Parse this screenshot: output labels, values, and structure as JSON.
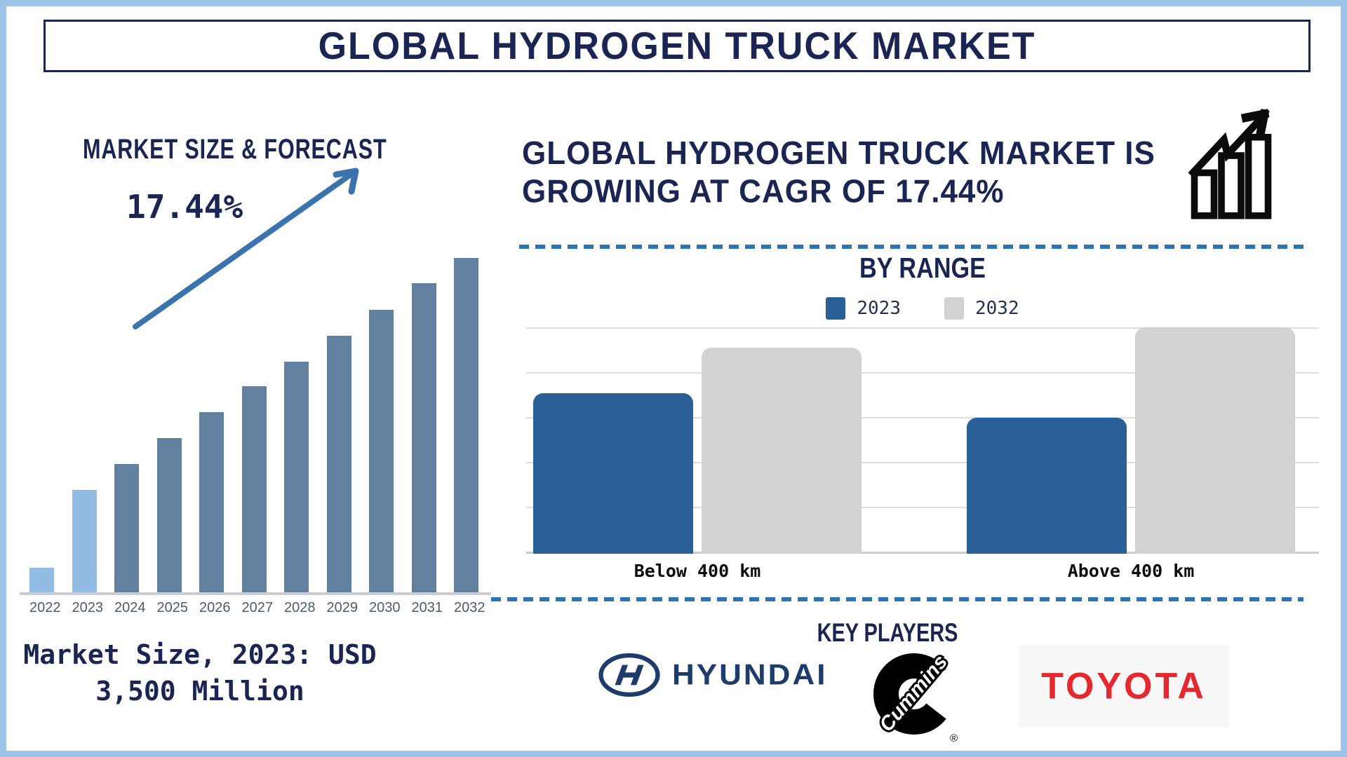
{
  "title": "GLOBAL HYDROGEN TRUCK MARKET",
  "left_panel": {
    "heading": "MARKET SIZE & FORECAST",
    "cagr_annotation": "17.44%",
    "caption_line1": "Market Size, 2023: USD",
    "caption_line2": "3,500 Million"
  },
  "right_panel": {
    "heading_line1": "GLOBAL HYDROGEN TRUCK MARKET IS",
    "heading_line2": "GROWING AT CAGR OF 17.44%",
    "by_range_title": "BY RANGE",
    "key_players_title": "KEY PLAYERS",
    "players": [
      {
        "name": "Hyundai",
        "wordmark": "HYUNDAI",
        "brand_color": "#1E3C6B"
      },
      {
        "name": "Cummins",
        "wordmark": "Cummins",
        "registered_mark": "®",
        "brand_color": "#000000"
      },
      {
        "name": "Toyota",
        "wordmark": "TOYOTA",
        "brand_color": "#E4282E"
      }
    ]
  },
  "chart_data": [
    {
      "type": "bar",
      "title": "MARKET SIZE & FORECAST",
      "categories": [
        "2022",
        "2023",
        "2024",
        "2025",
        "2026",
        "2027",
        "2028",
        "2029",
        "2030",
        "2031",
        "2032"
      ],
      "values_pct_of_tallest": [
        7.3,
        30.6,
        38.4,
        46.1,
        53.9,
        61.6,
        69.0,
        76.7,
        84.5,
        92.5,
        100
      ],
      "annotation": "17.44%",
      "historical_color": "#93BCE3",
      "forecast_color": "#62809F",
      "historical_indices": [
        0,
        1
      ],
      "axis_numbers_shown": false,
      "note": "No numeric y-axis in source; values are bar heights as a percent of the 2032 bar."
    },
    {
      "type": "bar",
      "title": "BY RANGE",
      "categories": [
        "Below 400 km",
        "Above 400 km"
      ],
      "series": [
        {
          "name": "2023",
          "color": "#2A6097",
          "values_pct_of_plot": [
            71,
            60
          ]
        },
        {
          "name": "2032",
          "color": "#D2D2D2",
          "values_pct_of_plot": [
            91,
            100
          ]
        }
      ],
      "legend_position": "top",
      "gridlines": 6,
      "axis_numbers_shown": false,
      "note": "No numeric y-axis in source; values are bar heights as a percent of plot height."
    }
  ]
}
